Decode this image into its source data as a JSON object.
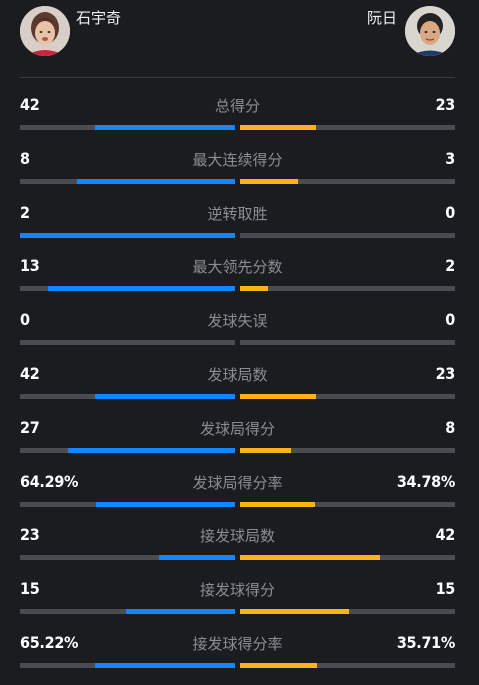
{
  "players": {
    "left": {
      "name": "石宇奇"
    },
    "right": {
      "name": "阮日"
    }
  },
  "colors": {
    "background": "#1b1c20",
    "left_bar": "#1286ff",
    "right_bar": "#ffb21a",
    "track": "#4b4c51",
    "label": "#8c8d92"
  },
  "stats": [
    {
      "label": "总得分",
      "left": "42",
      "right": "23",
      "left_frac": 0.65,
      "right_frac": 0.355
    },
    {
      "label": "最大连续得分",
      "left": "8",
      "right": "3",
      "left_frac": 0.735,
      "right_frac": 0.27
    },
    {
      "label": "逆转取胜",
      "left": "2",
      "right": "0",
      "left_frac": 1.0,
      "right_frac": 0.0
    },
    {
      "label": "最大领先分数",
      "left": "13",
      "right": "2",
      "left_frac": 0.87,
      "right_frac": 0.13
    },
    {
      "label": "发球失误",
      "left": "0",
      "right": "0",
      "left_frac": 0.0,
      "right_frac": 0.0
    },
    {
      "label": "发球局数",
      "left": "42",
      "right": "23",
      "left_frac": 0.65,
      "right_frac": 0.355
    },
    {
      "label": "发球局得分",
      "left": "27",
      "right": "8",
      "left_frac": 0.775,
      "right_frac": 0.235
    },
    {
      "label": "发球局得分率",
      "left": "64.29%",
      "right": "34.78%",
      "left_frac": 0.645,
      "right_frac": 0.35
    },
    {
      "label": "接发球局数",
      "left": "23",
      "right": "42",
      "left_frac": 0.355,
      "right_frac": 0.65
    },
    {
      "label": "接发球得分",
      "left": "15",
      "right": "15",
      "left_frac": 0.505,
      "right_frac": 0.505
    },
    {
      "label": "接发球得分率",
      "left": "65.22%",
      "right": "35.71%",
      "left_frac": 0.65,
      "right_frac": 0.36
    }
  ]
}
